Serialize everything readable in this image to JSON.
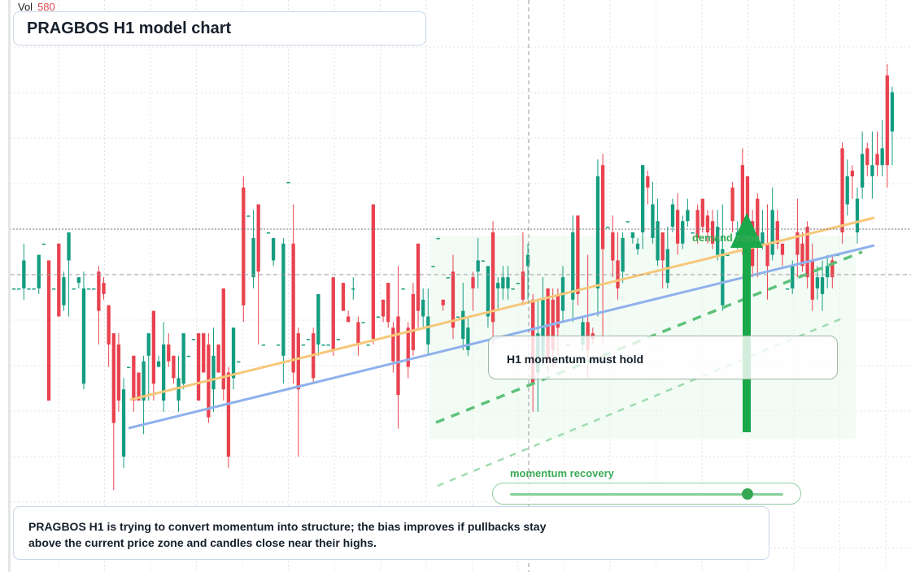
{
  "header": {
    "vol_label": "Vol",
    "vol_value": "580"
  },
  "title": "PRAGBOS H1 model chart",
  "callout": {
    "text": "H1 momentum must hold"
  },
  "zone": {
    "label": "demand zone"
  },
  "slider": {
    "label": "momentum recovery",
    "value_fraction": 0.87
  },
  "note": {
    "line1": "PRAGBOS H1 is trying to convert momentum into structure; the bias improves if pullbacks stay",
    "line2": "above the current price zone and candles close near their highs."
  },
  "colors": {
    "bull": "#149c80",
    "bear": "#e9424f",
    "resistance_line": "#f7c77a",
    "support_line": "#8fb1ec",
    "trend_dashed": "#5cc27a",
    "arrow": "#1aa84a",
    "zone_fill": "#eaf7ec"
  },
  "chart_data": {
    "type": "candlestick",
    "title": "PRAGBOS H1 model chart",
    "ylim": [
      0,
      100
    ],
    "grid": true,
    "overlays": [
      "rising resistance line",
      "rising support line",
      "dashed green trend lines",
      "demand zone",
      "upward arrow"
    ],
    "candles": [
      [
        50,
        50,
        50,
        50
      ],
      [
        50,
        50,
        50,
        50
      ],
      [
        50,
        55,
        58,
        48
      ],
      [
        50,
        50,
        50,
        50
      ],
      [
        50,
        50,
        50,
        50
      ],
      [
        50,
        56,
        56,
        49
      ],
      [
        58,
        58,
        58,
        58
      ],
      [
        55,
        30,
        55,
        30
      ],
      [
        50,
        50,
        50,
        50
      ],
      [
        58,
        45,
        58,
        45
      ],
      [
        47,
        52,
        53,
        46
      ],
      [
        55,
        60,
        60,
        45
      ],
      [
        50,
        50,
        50,
        50
      ],
      [
        51,
        52,
        52,
        50
      ],
      [
        33,
        50,
        53,
        32
      ],
      [
        50,
        50,
        50,
        50
      ],
      [
        50,
        50,
        50,
        50
      ],
      [
        53,
        46,
        54,
        40
      ],
      [
        51,
        49,
        52,
        48
      ],
      [
        47,
        40,
        47,
        36
      ],
      [
        42,
        26,
        42,
        14
      ],
      [
        40,
        30,
        42,
        28
      ],
      [
        20,
        32,
        34,
        18
      ],
      [
        36,
        36,
        36,
        36
      ],
      [
        38,
        30,
        38,
        28
      ],
      [
        35,
        30,
        35,
        30
      ],
      [
        30,
        37,
        38,
        24
      ],
      [
        38,
        42,
        42,
        30
      ],
      [
        46,
        33,
        46,
        30
      ],
      [
        36,
        37,
        38,
        36
      ],
      [
        30,
        40,
        44,
        28
      ],
      [
        40,
        37,
        42,
        36
      ],
      [
        38,
        34,
        38,
        33
      ],
      [
        30,
        34,
        38,
        28
      ],
      [
        33,
        42,
        42,
        32
      ],
      [
        38,
        38,
        38,
        38
      ],
      [
        41,
        41,
        41,
        41
      ],
      [
        42,
        30,
        42,
        30
      ],
      [
        42,
        35,
        42,
        35
      ],
      [
        40,
        27,
        42,
        26
      ],
      [
        32,
        38,
        43,
        28
      ],
      [
        40,
        35,
        40,
        35
      ],
      [
        50,
        32,
        50,
        30
      ],
      [
        35,
        20,
        36,
        18
      ],
      [
        34,
        43,
        43,
        32
      ],
      [
        37,
        37,
        37,
        37
      ],
      [
        68,
        47,
        70,
        44
      ],
      [
        63,
        63,
        63,
        63
      ],
      [
        52,
        59,
        64,
        50
      ],
      [
        65,
        53,
        65,
        40
      ],
      [
        40,
        40,
        40,
        40
      ],
      [
        60,
        60,
        60,
        60
      ],
      [
        55,
        59,
        59,
        54
      ],
      [
        40,
        40,
        40,
        40
      ],
      [
        38,
        58,
        59,
        33
      ],
      [
        69,
        69,
        69,
        69
      ],
      [
        58,
        35,
        65,
        33
      ],
      [
        42,
        32,
        43,
        20
      ],
      [
        40,
        40,
        40,
        40
      ],
      [
        41,
        41,
        41,
        41
      ],
      [
        42,
        34,
        43,
        33
      ],
      [
        40,
        49,
        49,
        38
      ],
      [
        40,
        40,
        40,
        40
      ],
      [
        40,
        40,
        40,
        40
      ],
      [
        52,
        39,
        52,
        38
      ],
      [
        41,
        41,
        41,
        41
      ],
      [
        51,
        46,
        51,
        46
      ],
      [
        45,
        44,
        46,
        44
      ],
      [
        50,
        50,
        52,
        48
      ],
      [
        44,
        40,
        45,
        38
      ],
      [
        44,
        44,
        44,
        44
      ],
      [
        40,
        40,
        40,
        40
      ],
      [
        65,
        41,
        65,
        40
      ],
      [
        45,
        45,
        45,
        45
      ],
      [
        48,
        45,
        48,
        44
      ],
      [
        51,
        44,
        51,
        43
      ],
      [
        43,
        37,
        44,
        35
      ],
      [
        45,
        31,
        54,
        25
      ],
      [
        50,
        50,
        50,
        50
      ],
      [
        43,
        36,
        44,
        34
      ],
      [
        49,
        39,
        51,
        38
      ],
      [
        58,
        46,
        58,
        43
      ],
      [
        45,
        48,
        50,
        43
      ],
      [
        40,
        45,
        50,
        38
      ],
      [
        54,
        54,
        54,
        54
      ],
      [
        59,
        59,
        59,
        59
      ],
      [
        48,
        47,
        48,
        46
      ],
      [
        52,
        52,
        52,
        52
      ],
      [
        53,
        43,
        56,
        41
      ],
      [
        45,
        45,
        45,
        45
      ],
      [
        41,
        46,
        51,
        39
      ],
      [
        39,
        43,
        45,
        38
      ],
      [
        52,
        50,
        53,
        46
      ],
      [
        53,
        55,
        59,
        50
      ],
      [
        55,
        55,
        55,
        55
      ],
      [
        45,
        54,
        54,
        43
      ],
      [
        60,
        44,
        62,
        40
      ],
      [
        50,
        51,
        52,
        46
      ],
      [
        50,
        52,
        54,
        48
      ],
      [
        50,
        52,
        54,
        48
      ],
      [
        50,
        50,
        50,
        50
      ],
      [
        51,
        51,
        51,
        51
      ],
      [
        53,
        48,
        60,
        47
      ],
      [
        54,
        56,
        58,
        48
      ],
      [
        48,
        33,
        49,
        28
      ],
      [
        35,
        42,
        48,
        28
      ],
      [
        38,
        48,
        52,
        36
      ],
      [
        50,
        37,
        50,
        35
      ],
      [
        48,
        39,
        50,
        36
      ],
      [
        49,
        43,
        50,
        38
      ],
      [
        46,
        52,
        54,
        44
      ],
      [
        40,
        40,
        40,
        40
      ],
      [
        48,
        60,
        63,
        44
      ],
      [
        63,
        49,
        63,
        47
      ],
      [
        40,
        44,
        45,
        39
      ],
      [
        44,
        39,
        56,
        34
      ],
      [
        42,
        41,
        43,
        40
      ],
      [
        50,
        70,
        73,
        45
      ],
      [
        72,
        57,
        74,
        40
      ],
      [
        61,
        61,
        61,
        61
      ],
      [
        60,
        55,
        63,
        52
      ],
      [
        55,
        50,
        60,
        48
      ],
      [
        53,
        59,
        60,
        51
      ],
      [
        62,
        62,
        62,
        62
      ],
      [
        59,
        60,
        60,
        58
      ],
      [
        57,
        58,
        59,
        56
      ],
      [
        60,
        72,
        72,
        57
      ],
      [
        70,
        68,
        71,
        65
      ],
      [
        59,
        65,
        69,
        58
      ],
      [
        55,
        62,
        66,
        54
      ],
      [
        60,
        55,
        60,
        50
      ],
      [
        51,
        57,
        61,
        50
      ],
      [
        61,
        65,
        66,
        60
      ],
      [
        64,
        58,
        67,
        56
      ],
      [
        58,
        62,
        63,
        57
      ],
      [
        62,
        64,
        66,
        61
      ],
      [
        60,
        60,
        60,
        60
      ],
      [
        64,
        59,
        65,
        58
      ],
      [
        66,
        61,
        66,
        60
      ],
      [
        63,
        60,
        64,
        58
      ],
      [
        62,
        58,
        64,
        57
      ],
      [
        56,
        61,
        64,
        55
      ],
      [
        47,
        57,
        65,
        46
      ],
      [
        56,
        56,
        56,
        56
      ],
      [
        68,
        62,
        69,
        60
      ],
      [
        58,
        60,
        62,
        57
      ],
      [
        72,
        60,
        75,
        56
      ],
      [
        70,
        62,
        70,
        58
      ],
      [
        62,
        54,
        64,
        52
      ],
      [
        66,
        58,
        67,
        52
      ],
      [
        58,
        60,
        64,
        57
      ],
      [
        58,
        54,
        65,
        48
      ],
      [
        56,
        64,
        68,
        55
      ],
      [
        62,
        58,
        64,
        57
      ],
      [
        58,
        56,
        58,
        54
      ],
      [
        50,
        50,
        50,
        50
      ],
      [
        50,
        54,
        55,
        49
      ],
      [
        60,
        56,
        66,
        52
      ],
      [
        58,
        54,
        60,
        53
      ],
      [
        61,
        52,
        62,
        50
      ],
      [
        55,
        48,
        58,
        46
      ],
      [
        50,
        52,
        54,
        48
      ],
      [
        49,
        52,
        55,
        46
      ],
      [
        52,
        54,
        56,
        50
      ],
      [
        55,
        52,
        56,
        50
      ],
      [
        56,
        56,
        56,
        56
      ],
      [
        75,
        60,
        76,
        58
      ],
      [
        65,
        70,
        73,
        63
      ],
      [
        71,
        70,
        72,
        66
      ],
      [
        60,
        66,
        68,
        58
      ],
      [
        68,
        74,
        78,
        66
      ],
      [
        75,
        72,
        76,
        70
      ],
      [
        70,
        72,
        78,
        66
      ],
      [
        74,
        72,
        78,
        70
      ],
      [
        72,
        75,
        80,
        70
      ],
      [
        88,
        72,
        90,
        68
      ],
      [
        78,
        85,
        86,
        72
      ]
    ]
  }
}
